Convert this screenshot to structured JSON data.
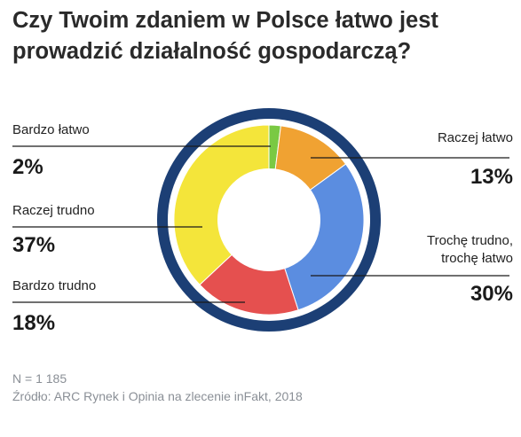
{
  "title_line1": "Czy Twoim zdaniem w Polsce łatwo jest",
  "title_line2": "prowadzić działalność gospodarczą?",
  "colors": {
    "outer_ring": "#1c3f75",
    "bardzo_latwo": "#7ac943",
    "raczej_latwo": "#f0a232",
    "troche": "#5b8de0",
    "bardzo_trudno": "#e5504f",
    "raczej_trudno": "#f4e53a"
  },
  "labels": {
    "bardzo_latwo": "Bardzo łatwo",
    "bardzo_latwo_value": "2%",
    "raczej_trudno": "Raczej trudno",
    "raczej_trudno_value": "37%",
    "bardzo_trudno": "Bardzo trudno",
    "bardzo_trudno_value": "18%",
    "raczej_latwo": "Raczej łatwo",
    "raczej_latwo_value": "13%",
    "troche_line1": "Trochę trudno,",
    "troche_line2": "trochę łatwo",
    "troche_value": "30%"
  },
  "footer": {
    "n": "N = 1 185",
    "source": "Źródło: ARC Rynek i Opinia na zlecenie inFakt, 2018"
  },
  "chart_data": {
    "type": "pie",
    "title": "Czy Twoim zdaniem w Polsce łatwo jest prowadzić działalność gospodarczą?",
    "categories": [
      "Bardzo łatwo",
      "Raczej łatwo",
      "Trochę trudno, trochę łatwo",
      "Bardzo trudno",
      "Raczej trudno"
    ],
    "values": [
      2,
      13,
      30,
      18,
      37
    ],
    "unit": "%",
    "colors": [
      "#7ac943",
      "#f0a232",
      "#5b8de0",
      "#e5504f",
      "#f4e53a"
    ]
  }
}
